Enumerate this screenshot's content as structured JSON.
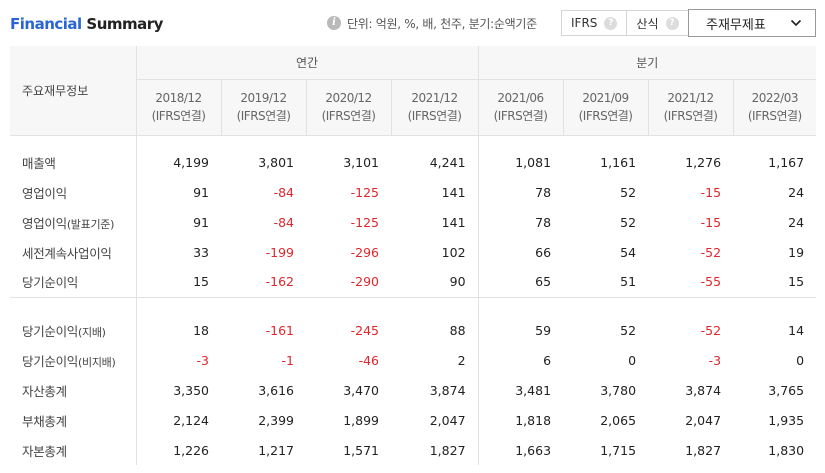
{
  "header": {
    "title_part1": "Financial",
    "title_part2": "Summary",
    "unit_note": "단위: 억원, %, 배, 천주, 분기:순액기준",
    "toggle_ifrs": "IFRS",
    "toggle_sansik": "산식",
    "dropdown_value": "주재무제표"
  },
  "table": {
    "corner_label": "주요재무정보",
    "group_annual": "연간",
    "group_quarter": "분기",
    "periods": [
      {
        "date": "2018/12",
        "basis": "(IFRS연결)"
      },
      {
        "date": "2019/12",
        "basis": "(IFRS연결)"
      },
      {
        "date": "2020/12",
        "basis": "(IFRS연결)"
      },
      {
        "date": "2021/12",
        "basis": "(IFRS연결)"
      },
      {
        "date": "2021/06",
        "basis": "(IFRS연결)"
      },
      {
        "date": "2021/09",
        "basis": "(IFRS연결)"
      },
      {
        "date": "2021/12",
        "basis": "(IFRS연결)"
      },
      {
        "date": "2022/03",
        "basis": "(IFRS연결)"
      }
    ],
    "rows": [
      {
        "label": "매출액",
        "small": "",
        "values": [
          "4,199",
          "3,801",
          "3,101",
          "4,241",
          "1,081",
          "1,161",
          "1,276",
          "1,167"
        ]
      },
      {
        "label": "영업이익",
        "small": "",
        "values": [
          "91",
          "-84",
          "-125",
          "141",
          "78",
          "52",
          "-15",
          "24"
        ]
      },
      {
        "label": "영업이익",
        "small": "(발표기준)",
        "values": [
          "91",
          "-84",
          "-125",
          "141",
          "78",
          "52",
          "-15",
          "24"
        ]
      },
      {
        "label": "세전계속사업이익",
        "small": "",
        "values": [
          "33",
          "-199",
          "-296",
          "102",
          "66",
          "54",
          "-52",
          "19"
        ]
      },
      {
        "label": "당기순이익",
        "small": "",
        "values": [
          "15",
          "-162",
          "-290",
          "90",
          "65",
          "51",
          "-55",
          "15"
        ]
      },
      {
        "label": "당기순이익",
        "small": "(지배)",
        "values": [
          "18",
          "-161",
          "-245",
          "88",
          "59",
          "52",
          "-52",
          "14"
        ]
      },
      {
        "label": "당기순이익",
        "small": "(비지배)",
        "values": [
          "-3",
          "-1",
          "-46",
          "2",
          "6",
          "0",
          "-3",
          "0"
        ]
      },
      {
        "label": "자산총계",
        "small": "",
        "values": [
          "3,350",
          "3,616",
          "3,470",
          "3,874",
          "3,481",
          "3,780",
          "3,874",
          "3,765"
        ]
      },
      {
        "label": "부채총계",
        "small": "",
        "values": [
          "2,124",
          "2,399",
          "1,899",
          "2,047",
          "1,818",
          "2,065",
          "2,047",
          "1,935"
        ]
      },
      {
        "label": "자본총계",
        "small": "",
        "values": [
          "1,226",
          "1,217",
          "1,571",
          "1,827",
          "1,663",
          "1,715",
          "1,827",
          "1,830"
        ]
      }
    ]
  },
  "colors": {
    "title_accent": "#2a64d6",
    "negative": "#e0262c"
  }
}
